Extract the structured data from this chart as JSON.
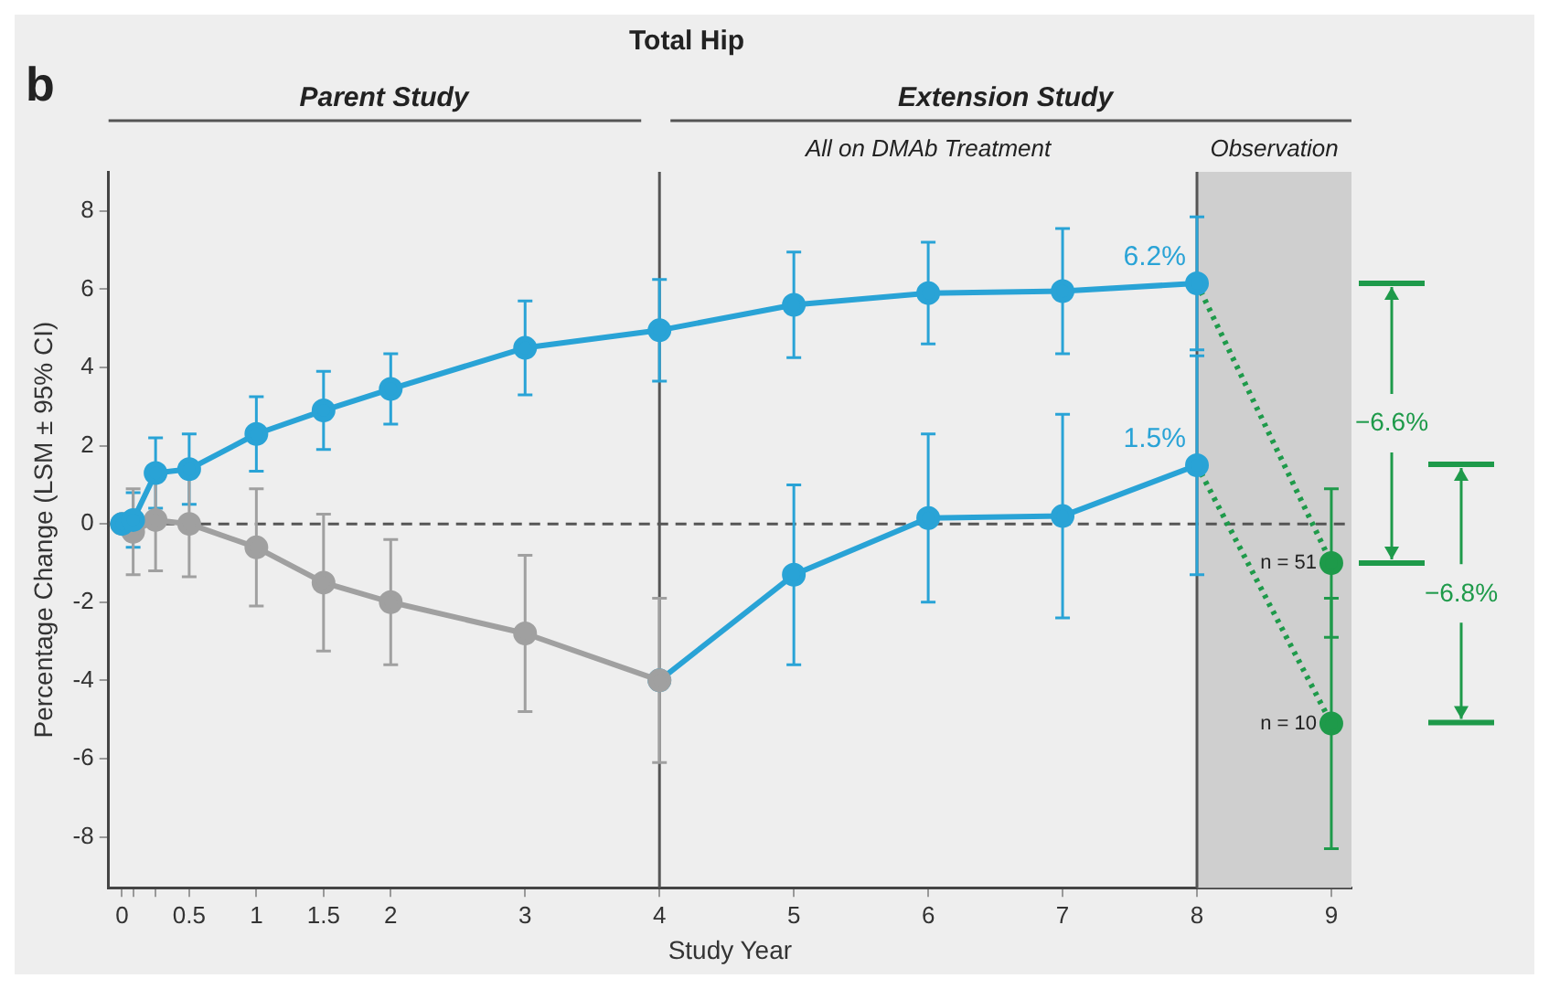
{
  "chart_data": {
    "type": "line",
    "title": "Total Hip",
    "xlabel": "Study Year",
    "ylabel": "Percentage Change (LSM ± 95% CI)",
    "xlim": [
      -0.1,
      9.15
    ],
    "ylim": [
      -9.3,
      9.0
    ],
    "xticks": [
      0,
      {
        "value": 0.083,
        "label": null
      },
      {
        "value": 0.25,
        "label": null
      },
      0.5,
      1,
      1.5,
      2,
      3,
      4,
      5,
      6,
      7,
      8,
      9
    ],
    "yticks": [
      -8,
      -6,
      -4,
      -2,
      0,
      2,
      4,
      6,
      8
    ],
    "grid": false,
    "legend": false,
    "marker": "circle",
    "line_style": "solid",
    "series": [
      {
        "color": "#29a3d6",
        "x": [
          0,
          0.083,
          0.25,
          0.5,
          1,
          1.5,
          2,
          3,
          4,
          5,
          6,
          7,
          8
        ],
        "values": [
          0,
          0.1,
          1.3,
          1.4,
          2.3,
          2.9,
          3.45,
          4.5,
          4.95,
          5.6,
          5.9,
          5.95,
          6.15
        ],
        "errors": [
          null,
          0.7,
          0.9,
          0.9,
          0.95,
          1.0,
          0.9,
          1.2,
          1.3,
          1.35,
          1.3,
          1.6,
          1.7
        ]
      },
      {
        "color": "#a0a0a0",
        "x": [
          0,
          0.083,
          0.25,
          0.5,
          1,
          1.5,
          2,
          3,
          4
        ],
        "values": [
          0,
          -0.2,
          0.1,
          0.0,
          -0.6,
          -1.5,
          -2.0,
          -2.8,
          -4.0
        ],
        "errors": [
          null,
          1.1,
          1.3,
          1.35,
          1.5,
          1.75,
          1.6,
          2.0,
          2.1
        ]
      },
      {
        "color": "#29a3d6",
        "x": [
          4,
          5,
          6,
          7,
          8
        ],
        "values": [
          -4.0,
          -1.3,
          0.15,
          0.2,
          1.5
        ],
        "errors": [
          null,
          2.3,
          2.15,
          2.6,
          2.8
        ]
      },
      {
        "color": "#1e9a4a",
        "x": [
          8,
          9
        ],
        "values": [
          6.15,
          -1.0
        ],
        "marker": "none",
        "line_style": "dotted"
      },
      {
        "color": "#1e9a4a",
        "x": [
          8,
          9
        ],
        "values": [
          1.5,
          -5.1
        ],
        "marker": "none",
        "line_style": "dotted"
      },
      {
        "type": "scatter",
        "color": "#1e9a4a",
        "x": [
          9,
          9
        ],
        "values": [
          -1.0,
          -5.1
        ],
        "errors": [
          1.9,
          3.2
        ]
      }
    ],
    "ref_lines": [
      {
        "axis": "y",
        "value": 0,
        "color": "#555555",
        "line_style": "dashed"
      },
      {
        "axis": "x",
        "value": 4,
        "color": "#555555"
      },
      {
        "axis": "x",
        "value": 8,
        "color": "#555555"
      }
    ],
    "bands": [
      {
        "axis": "x",
        "from": 8,
        "to": 9.15,
        "color": "#cfcfcf"
      }
    ],
    "annotations": [
      "b",
      "Parent Study",
      "Extension Study",
      "All on DMAb Treatment",
      "Observation",
      "−6.6%",
      "−6.8%",
      "6.2%",
      "1.5%",
      "n = 51",
      "n = 10"
    ]
  }
}
